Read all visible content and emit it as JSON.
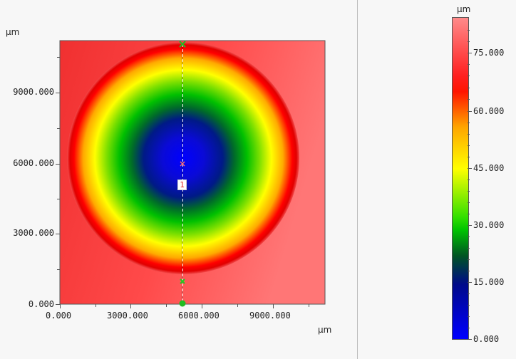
{
  "plot": {
    "y_unit": "µm",
    "x_unit": "µm",
    "x_ticks": [
      "0.000",
      "3000.000",
      "6000.000",
      "9000.000"
    ],
    "y_ticks": [
      "9000.000",
      "6000.000",
      "3000.000",
      "0.000"
    ],
    "profile_marker_label": "1"
  },
  "colorbar": {
    "unit": "µm",
    "ticks": [
      "75.000",
      "60.000",
      "45.000",
      "30.000",
      "15.000",
      "0.000"
    ],
    "range": [
      0,
      85
    ],
    "stops": [
      "#0000ff",
      "#000099",
      "#00cc00",
      "#ffff00",
      "#ff0000",
      "#ff8a8a"
    ]
  },
  "colors": {
    "background": "#f7f7f7",
    "profile_line": "#ffffff",
    "marker_green": "#22bb22",
    "marker_red": "#ff6666"
  }
}
